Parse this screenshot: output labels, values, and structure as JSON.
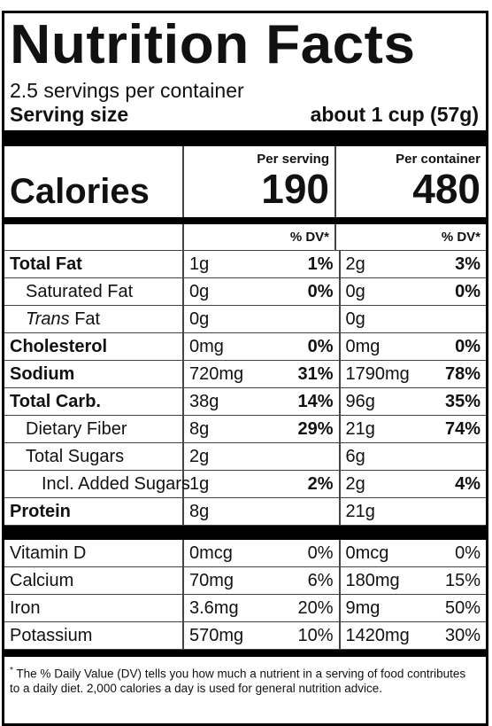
{
  "title": "Nutrition Facts",
  "servings": "2.5 servings per container",
  "serving_size": {
    "label": "Serving size",
    "value": "about 1 cup (57g)"
  },
  "columns": [
    "Per serving",
    "Per container"
  ],
  "calories": {
    "label": "Calories",
    "values": [
      "190",
      "480"
    ]
  },
  "dv_headers": [
    "% DV*",
    "% DV*"
  ],
  "nutrients": [
    {
      "name": "Total Fat",
      "bold": true,
      "level": 0,
      "values": [
        "1g",
        "1%",
        "2g",
        "3%"
      ]
    },
    {
      "name": "Saturated Fat",
      "bold": false,
      "level": 1,
      "values": [
        "0g",
        "0%",
        "0g",
        "0%"
      ]
    },
    {
      "italic": "Trans",
      "name": "Fat",
      "bold": false,
      "level": 1,
      "values": [
        "0g",
        null,
        "0g",
        null
      ]
    },
    {
      "name": "Cholesterol",
      "bold": true,
      "level": 0,
      "values": [
        "0mg",
        "0%",
        "0mg",
        "0%"
      ]
    },
    {
      "name": "Sodium",
      "bold": true,
      "level": 0,
      "values": [
        "720mg",
        "31%",
        "1790mg",
        "78%"
      ]
    },
    {
      "name": "Total Carb.",
      "bold": true,
      "level": 0,
      "values": [
        "38g",
        "14%",
        "96g",
        "35%"
      ]
    },
    {
      "name": "Dietary Fiber",
      "bold": false,
      "level": 1,
      "values": [
        "8g",
        "29%",
        "21g",
        "74%"
      ]
    },
    {
      "name": "Total Sugars",
      "bold": false,
      "level": 1,
      "values": [
        "2g",
        null,
        "6g",
        null
      ]
    },
    {
      "name": "Incl. Added Sugars",
      "bold": false,
      "level": 2,
      "values": [
        "1g",
        "2%",
        "2g",
        "4%"
      ]
    },
    {
      "name": "Protein",
      "bold": true,
      "level": 0,
      "values": [
        "8g",
        null,
        "21g",
        null
      ]
    }
  ],
  "vitamins": [
    {
      "name": "Vitamin D",
      "values": [
        "0mcg",
        "0%",
        "0mcg",
        "0%"
      ]
    },
    {
      "name": "Calcium",
      "values": [
        "70mg",
        "6%",
        "180mg",
        "15%"
      ]
    },
    {
      "name": "Iron",
      "values": [
        "3.6mg",
        "20%",
        "9mg",
        "50%"
      ]
    },
    {
      "name": "Potassium",
      "values": [
        "570mg",
        "10%",
        "1420mg",
        "30%"
      ]
    }
  ],
  "footnote": {
    "marker": "*",
    "text": "The % Daily Value (DV) tells you how much a nutrient in a serving of food contributes to a daily diet. 2,000 calories a day is used for general nutrition advice."
  }
}
